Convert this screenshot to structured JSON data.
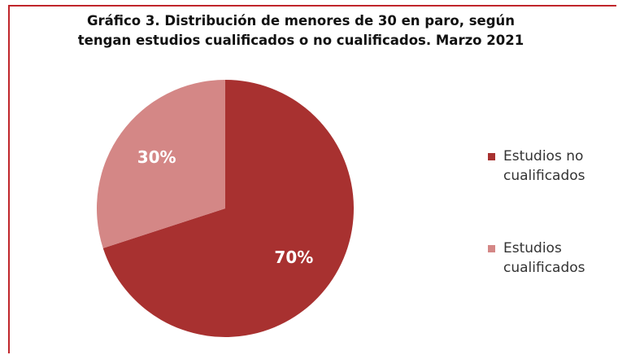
{
  "chart_data": {
    "type": "pie",
    "title": "Gráfico 3. Distribución de menores de 30 en paro, según tengan estudios cualificados o no cualificados. Marzo 2021",
    "categories": [
      "Estudios no cualificados",
      "Estudios cualificados"
    ],
    "values": [
      70,
      30
    ],
    "value_labels": [
      "70%",
      "30%"
    ],
    "colors": [
      "#a83130",
      "#d48786"
    ],
    "legend": "right"
  }
}
